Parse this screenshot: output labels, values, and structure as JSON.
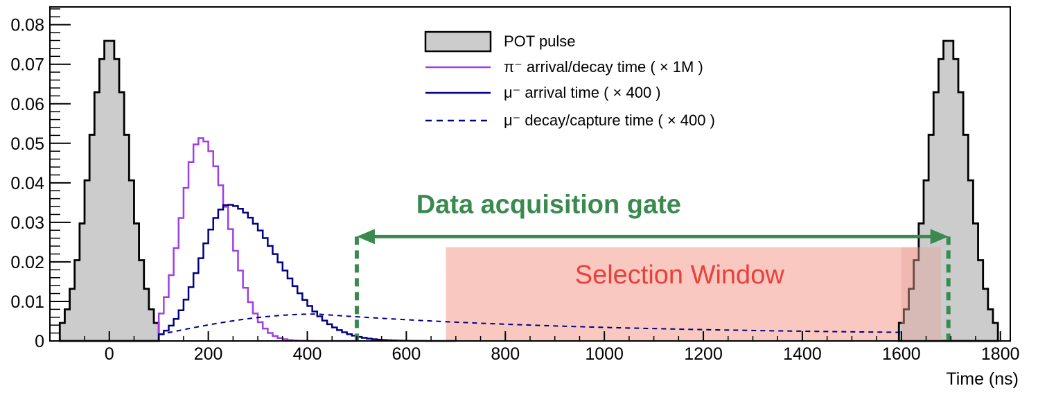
{
  "chart_data": {
    "type": "histogram",
    "xlabel": "Time (ns)",
    "ylabel": "",
    "xlim": [
      -120,
      1820
    ],
    "ylim": [
      0,
      0.0845
    ],
    "x_ticks": [
      0,
      200,
      400,
      600,
      800,
      1000,
      1200,
      1400,
      1600,
      1800
    ],
    "x_tick_labels": [
      "0",
      "200",
      "400",
      "600",
      "800",
      "1000",
      "1200",
      "1400",
      "1600",
      "1800"
    ],
    "y_ticks": [
      0,
      0.01,
      0.02,
      0.03,
      0.04,
      0.05,
      0.06,
      0.07,
      0.08
    ],
    "y_tick_labels": [
      "0",
      "0.01",
      "0.02",
      "0.03",
      "0.04",
      "0.05",
      "0.06",
      "0.07",
      "0.08"
    ],
    "series": [
      {
        "name": "POT pulse",
        "style": "filled-histogram",
        "color": "#000000",
        "fill": "#cccccc",
        "pulses": [
          {
            "center": 0,
            "peak": 0.0765,
            "sigma": 40,
            "half_width": 100
          },
          {
            "center": 1695,
            "peak": 0.0765,
            "sigma": 40,
            "half_width": 100
          }
        ]
      },
      {
        "name": "π⁻ arrival/decay time ( × 1M )",
        "style": "histogram",
        "color": "#a03ee6",
        "shape": {
          "start": 100,
          "peak_x": 185,
          "peak": 0.0513,
          "sigma_left": 40,
          "sigma_right": 55,
          "end": 500
        }
      },
      {
        "name": "μ⁻ arrival time ( × 400 )",
        "style": "histogram",
        "color": "#000080",
        "shape": {
          "start": 100,
          "peak_x": 240,
          "peak": 0.0345,
          "sigma_left": 55,
          "sigma_right": 100,
          "end": 700
        }
      },
      {
        "name": "μ⁻ decay/capture time ( × 400 )",
        "style": "dashed-line",
        "color": "#000080",
        "shape": {
          "start": 100,
          "peak_x": 420,
          "peak": 0.0068,
          "end_x": 1600,
          "end_value": 0.0015
        }
      }
    ],
    "legend": {
      "position": "top-center",
      "entries": [
        "POT pulse",
        "π⁻ arrival/decay time ( × 1M )",
        "μ⁻ arrival time ( × 400 )",
        "μ⁻ decay/capture time ( × 400 )"
      ]
    },
    "annotations": {
      "gate": {
        "label": "Data acquisition gate",
        "x_start": 500,
        "x_end": 1695,
        "arrow_y": 0.0264,
        "line_top": 0.0264,
        "color": "#3a8a4f"
      },
      "selection_window": {
        "label": "Selection Window",
        "x_start": 680,
        "x_end": 1680,
        "y_top": 0.0237,
        "fill": "#f6b8b0",
        "text_color": "#e8413a"
      }
    }
  }
}
